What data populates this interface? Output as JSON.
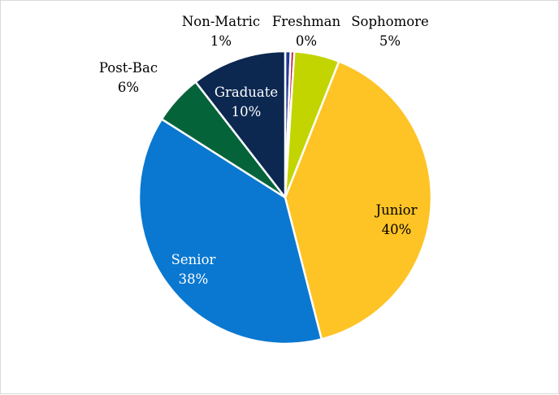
{
  "chart_data": {
    "type": "pie",
    "title": "",
    "start_angle_deg": 0,
    "direction": "clockwise",
    "slices": [
      {
        "label": "Non-Matric",
        "pct_label": "1%",
        "value": 0.6,
        "color": "#1f3a93",
        "label_color": "#000000"
      },
      {
        "label": "Freshman",
        "pct_label": "0%",
        "value": 0.4,
        "color": "#c0143c",
        "label_color": "#000000"
      },
      {
        "label": "Sophomore",
        "pct_label": "5%",
        "value": 5.0,
        "color": "#c3d500",
        "label_color": "#000000"
      },
      {
        "label": "Junior",
        "pct_label": "40%",
        "value": 40.0,
        "color": "#fec325",
        "label_color": "#000000"
      },
      {
        "label": "Senior",
        "pct_label": "38%",
        "value": 38.0,
        "color": "#0a78d0",
        "label_color": "#ffffff"
      },
      {
        "label": "Post-Bac",
        "pct_label": "6%",
        "value": 5.5,
        "color": "#05633a",
        "label_color": "#000000"
      },
      {
        "label": "Graduate",
        "pct_label": "10%",
        "value": 10.5,
        "color": "#0c2851",
        "label_color": "#ffffff"
      }
    ]
  }
}
